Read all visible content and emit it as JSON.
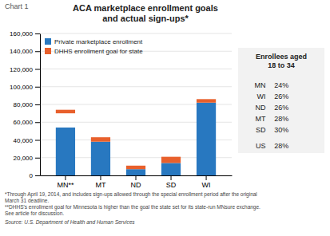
{
  "chart_data": {
    "type": "bar",
    "stacked": true,
    "title": "ACA marketplace enrollment goals\nand actual sign-ups*",
    "annotations": [
      "Chart 1"
    ],
    "categories": [
      "MN**",
      "MT",
      "ND",
      "SD",
      "WI"
    ],
    "series": [
      {
        "name": "Private marketplace enrollment",
        "color": "#2878c0",
        "values": [
          54000,
          38000,
          7000,
          14000,
          82000
        ]
      },
      {
        "name": "DHHS enrollment goal for state",
        "color": "#e8602c",
        "values": [
          4000,
          5000,
          4000,
          7000,
          4000
        ],
        "bottom": [
          70000,
          null,
          null,
          null,
          null
        ]
      }
    ],
    "ylim": [
      0,
      160000
    ],
    "yticks": [
      0,
      {
        "value": 20000,
        "label": "20,000"
      },
      {
        "value": 40000,
        "label": "40,000"
      },
      {
        "value": 60000,
        "label": "60,000"
      },
      {
        "value": 80000,
        "label": "80,000"
      },
      {
        "value": 100000,
        "label": "100,000"
      },
      {
        "value": 120000,
        "label": "120,000"
      },
      {
        "value": 140000,
        "label": "140,000"
      },
      {
        "value": 160000,
        "label": "160,000"
      }
    ],
    "grid": true,
    "legend": "upper left",
    "inset": {
      "title": "Enrollees aged\n18 to 34",
      "rows": [
        [
          "MN",
          "24%"
        ],
        [
          "WI",
          "26%"
        ],
        [
          "ND",
          "26%"
        ],
        [
          "MT",
          "28%"
        ],
        [
          "SD",
          "30%"
        ],
        [
          "US",
          "28%"
        ]
      ]
    },
    "notes": [
      "*Through April 19, 2014, and includes sign-ups allowed through the special enrollment period after the original",
      "March 31 deadline.",
      "**DHHS's enrollment goal for Minnesota is higher than the goal the state set for its state-run MNsure exchange.",
      "See article for discussion.",
      "Source: U.S. Department of Health and Human Services"
    ]
  }
}
